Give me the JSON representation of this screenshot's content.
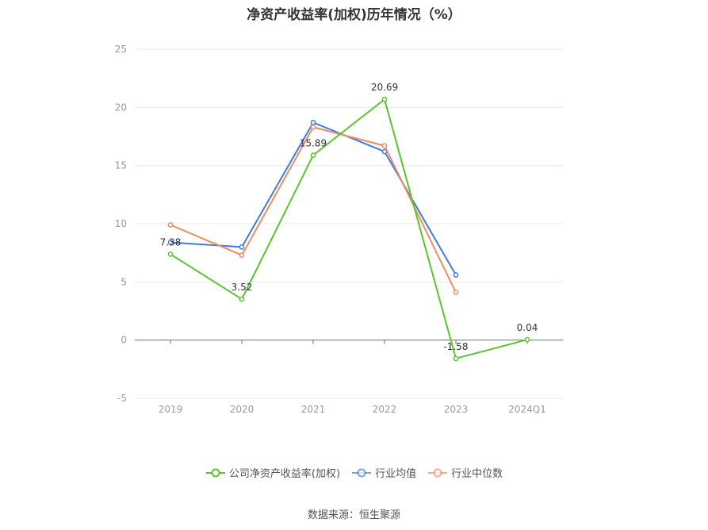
{
  "chart_data": {
    "type": "line",
    "title": "净资产收益率(加权)历年情况（%）",
    "categories": [
      "2019",
      "2020",
      "2021",
      "2022",
      "2023",
      "2024Q1"
    ],
    "ylim": [
      -5,
      25
    ],
    "yticks": [
      -5,
      0,
      5,
      10,
      15,
      20,
      25
    ],
    "grid": true,
    "legend_position": "bottom",
    "series": [
      {
        "name": "公司净资产收益率(加权)",
        "color": "#5ac42f",
        "values": [
          7.38,
          3.52,
          15.89,
          20.69,
          -1.58,
          0.04
        ],
        "labels": [
          "7.38",
          "3.52",
          "15.89",
          "20.69",
          "-1.58",
          "0.04"
        ]
      },
      {
        "name": "行业均值",
        "color": "#3d7ee0",
        "values": [
          8.4,
          8.0,
          18.7,
          16.2,
          5.6,
          null
        ]
      },
      {
        "name": "行业中位数",
        "color": "#f28b62",
        "values": [
          9.9,
          7.3,
          18.3,
          16.7,
          4.1,
          null
        ]
      }
    ]
  },
  "source": "数据来源：恒生聚源"
}
